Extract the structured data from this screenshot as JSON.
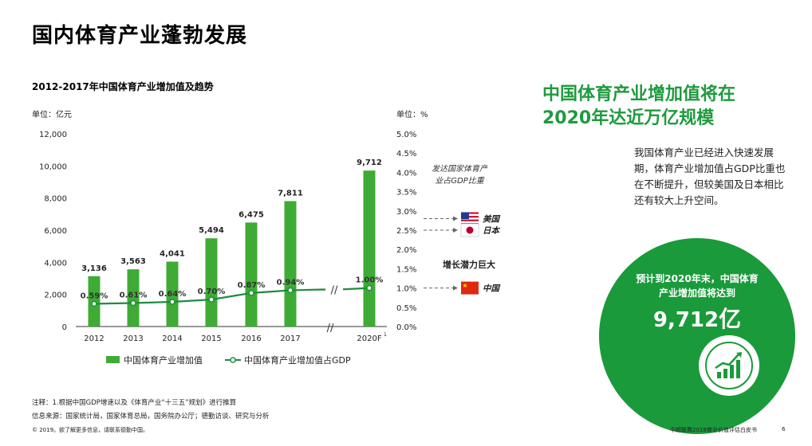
{
  "page_title": "国内体育产业蓬勃发展",
  "chart_title": "2012-2017年中国体育产业增加值及趋势",
  "colors": {
    "bar": "#3eab35",
    "line": "#1f8c3c",
    "accent": "#1a9a3a",
    "headline": "#1f9a3e"
  },
  "chart_data": {
    "type": "bar+line",
    "categories": [
      "2012",
      "2013",
      "2014",
      "2015",
      "2016",
      "2017",
      "2020F"
    ],
    "category_superscript": {
      "2020F": "1"
    },
    "left_unit": "单位：亿元",
    "right_unit": "单位：%",
    "left_ticks": [
      "12,000",
      "10,000",
      "8,000",
      "6,000",
      "4,000",
      "2,000",
      "0"
    ],
    "right_ticks": [
      "5.0%",
      "4.5%",
      "4.0%",
      "3.5%",
      "3.0%",
      "2.5%",
      "2.0%",
      "1.5%",
      "1.0%",
      "0.5%",
      "0.0%"
    ],
    "ylim_left": [
      0,
      12000
    ],
    "ylim_right": [
      0,
      5
    ],
    "series": [
      {
        "name": "中国体育产业增加值",
        "kind": "bar",
        "values": [
          3136,
          3563,
          4041,
          5494,
          6475,
          7811,
          9712
        ],
        "labels": [
          "3,136",
          "3,563",
          "4,041",
          "5,494",
          "6,475",
          "7,811",
          "9,712"
        ]
      },
      {
        "name": "中国体育产业增加值占GDP",
        "kind": "line",
        "values": [
          0.59,
          0.61,
          0.64,
          0.7,
          0.87,
          0.94,
          1.0
        ],
        "labels": [
          "0.59%",
          "0.61%",
          "0.64%",
          "0.70%",
          "0.87%",
          "0.94%",
          "1.00%"
        ]
      }
    ],
    "axis_break": "//",
    "legend_position": "bottom",
    "annotations": {
      "gdp_note": [
        "发达国家体育产",
        "业占GDP比重"
      ],
      "potential": "增长潜力巨大",
      "countries": [
        {
          "name": "美国",
          "flag": "us-flag-icon",
          "pct": 2.8
        },
        {
          "name": "日本",
          "flag": "japan-flag-icon",
          "pct": 2.5
        },
        {
          "name": "中国",
          "flag": "china-flag-icon",
          "pct": 1.0
        }
      ]
    }
  },
  "headline": {
    "line1": "中国体育产业增加值将在",
    "line2": "2020年达近万亿规模"
  },
  "description": "我国体育产业已经进入快速发展期，体育产业增加值占GDP比重也在不断提升，但较美国及日本相比还有较大上升空间。",
  "circle": {
    "line1": "预计到2020年末，中国体育",
    "line2": "产业增加值将达到",
    "value": "9,712",
    "unit": "亿",
    "icon": "growth-chart-icon"
  },
  "notes": {
    "note": "注释：1.根据中国GDP增速以及《体育产业“十三五”规划》进行推算",
    "source": "信息来源：国家统计局，国家体育总局，国务院办公厅；德勤访谈、研究与分析",
    "copyright": "© 2019。欲了解更多信息，请联系德勤中国。",
    "report": "中超联赛2018商业价值评估白皮书",
    "page": "6"
  }
}
